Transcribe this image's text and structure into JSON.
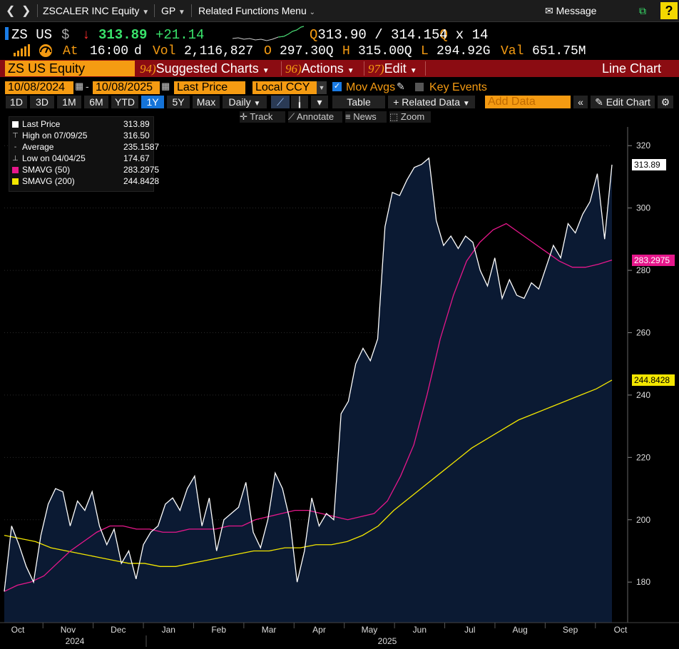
{
  "titlebar": {
    "security": "ZSCALER INC Equity",
    "function": "GP",
    "related": "Related Functions Menu",
    "message": "Message",
    "help": "?"
  },
  "quote": {
    "ticker": "ZS US",
    "currency": "$",
    "arrow": "↓",
    "last": "313.89",
    "change": "+21.14",
    "bid": "313.90",
    "ask": "314.15",
    "bid_ask_flag": "Q",
    "size": "4 x 14",
    "at_label": "At",
    "time": "16:00",
    "time_flag": "d",
    "vol_label": "Vol",
    "volume": "2,116,827",
    "open_label": "O",
    "open": "297.30Q",
    "high_label": "H",
    "high": "315.00Q",
    "low_label": "L",
    "low": "294.92G",
    "val_label": "Val",
    "value": "651.75M"
  },
  "menubar": {
    "security_field": "ZS US Equity",
    "items": [
      {
        "num": "94)",
        "label": "Suggested Charts"
      },
      {
        "num": "96)",
        "label": "Actions"
      },
      {
        "num": "97)",
        "label": "Edit"
      }
    ],
    "chart_type": "Line Chart"
  },
  "controls": {
    "start_date": "10/08/2024",
    "end_date": "10/08/2025",
    "field": "Last Price",
    "currency": "Local CCY",
    "mov_avgs": "Mov Avgs",
    "key_events": "Key Events",
    "periods": [
      "1D",
      "3D",
      "1M",
      "6M",
      "YTD",
      "1Y",
      "5Y",
      "Max"
    ],
    "active_period": "1Y",
    "frequency": "Daily",
    "table": "Table",
    "related_data": "+ Related Data",
    "add_data_placeholder": "Add Data",
    "edit_chart": "Edit Chart"
  },
  "chart_toolbar": {
    "track": "Track",
    "annotate": "Annotate",
    "news": "News",
    "zoom": "Zoom"
  },
  "legend": [
    {
      "label": "Last Price",
      "value": "313.89",
      "color": "#ffffff"
    },
    {
      "label": "High on 07/09/25",
      "value": "316.50",
      "color": ""
    },
    {
      "label": "Average",
      "value": "235.1587",
      "color": ""
    },
    {
      "label": "Low on 04/04/25",
      "value": "174.67",
      "color": ""
    },
    {
      "label": "SMAVG (50)",
      "value": "283.2975",
      "color": "#e6178b"
    },
    {
      "label": "SMAVG (200)",
      "value": "244.8428",
      "color": "#f3e600"
    }
  ],
  "tags": {
    "last": "313.89",
    "sma50": "283.2975",
    "sma200": "244.8428"
  },
  "colors": {
    "price": "#ffffff",
    "area": "#0b1a33",
    "sma50": "#e6178b",
    "sma200": "#f3e600",
    "accent": "#f59b12",
    "menubar": "#8b0c12"
  },
  "chart_data": {
    "type": "line",
    "x_ticks": [
      "Oct",
      "Nov",
      "Dec",
      "Jan",
      "Feb",
      "Mar",
      "Apr",
      "May",
      "Jun",
      "Jul",
      "Aug",
      "Sep",
      "Oct"
    ],
    "years": [
      "2024",
      "2025"
    ],
    "y_ticks": [
      180,
      200,
      220,
      240,
      260,
      280,
      300,
      320
    ],
    "ylim": [
      167,
      326
    ],
    "series": [
      {
        "name": "Last Price",
        "values": [
          177,
          198,
          192,
          185,
          180,
          195,
          205,
          210,
          209,
          198,
          206,
          203,
          209,
          198,
          192,
          197,
          186,
          190,
          181,
          192,
          196,
          198,
          205,
          207,
          203,
          210,
          214,
          198,
          207,
          190,
          200,
          202,
          204,
          212,
          196,
          191,
          200,
          215,
          210,
          200,
          180,
          190,
          207,
          198,
          202,
          200,
          234,
          238,
          250,
          255,
          251,
          258,
          294,
          305,
          304,
          309,
          313,
          314,
          316,
          296,
          288,
          291,
          287,
          291,
          289,
          280,
          275,
          284,
          271,
          277,
          272,
          271,
          276,
          274,
          281,
          288,
          284,
          295,
          292,
          298,
          302,
          311,
          290,
          313.89
        ]
      },
      {
        "name": "SMAVG (50)",
        "values": [
          177,
          179,
          180,
          182,
          186,
          190,
          193,
          196,
          198,
          198,
          197,
          197,
          196,
          196,
          197,
          197,
          197,
          198,
          198,
          200,
          201,
          202,
          203,
          203,
          202,
          201,
          200,
          201,
          202,
          206,
          214,
          224,
          240,
          258,
          272,
          283,
          289,
          293,
          295,
          292,
          289,
          286,
          283,
          281,
          281,
          282,
          283.3
        ]
      },
      {
        "name": "SMAVG (200)",
        "values": [
          195,
          194,
          193,
          191,
          190,
          189,
          188,
          187,
          186,
          186,
          185,
          185,
          186,
          187,
          188,
          189,
          190,
          190,
          191,
          191,
          192,
          192,
          193,
          195,
          198,
          203,
          207,
          211,
          215,
          219,
          223,
          226,
          229,
          232,
          234,
          236,
          238,
          240,
          242,
          244.8
        ]
      }
    ]
  }
}
